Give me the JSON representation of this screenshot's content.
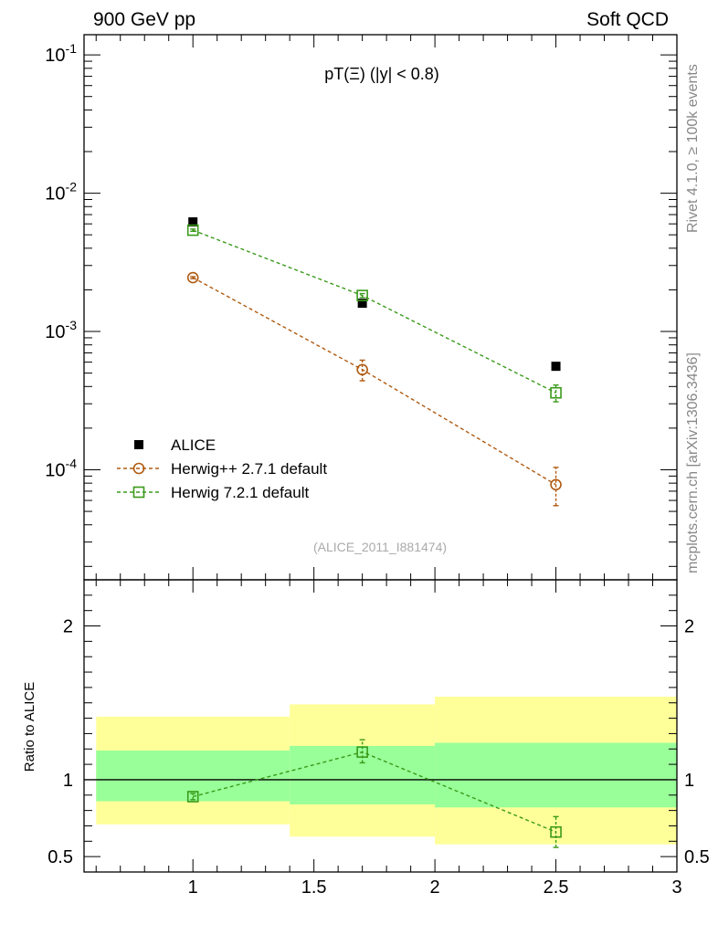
{
  "header": {
    "left": "900 GeV pp",
    "right": "Soft QCD",
    "plot_title": "pT(Ξ) (|y| < 0.8)",
    "side_top": "Rivet 4.1.0, ≥ 100k events",
    "side_bottom": "mcplots.cern.ch [arXiv:1306.3436]",
    "analysis_id": "(ALICE_2011_I881474)"
  },
  "colors": {
    "data": "#000000",
    "herwigpp": "#b05a10",
    "herwig7": "#3a9a1a",
    "band_inner": "#99ff99",
    "band_outer": "#ffff99"
  },
  "chart_data": [
    {
      "type": "scatter",
      "panel": "main",
      "title": "pT(Ξ) (|y| < 0.8)",
      "xlim": [
        0.55,
        3.0
      ],
      "ylim": [
        1.6e-05,
        0.14
      ],
      "yscale": "log",
      "y_ticks": [
        {
          "value": 0.1,
          "label": "10^-1"
        },
        {
          "value": 0.01,
          "label": "10^-2"
        },
        {
          "value": 0.001,
          "label": "10^-3"
        },
        {
          "value": 0.0001,
          "label": "10^-4"
        }
      ],
      "legend_position": "bottom-left",
      "series": [
        {
          "name": "ALICE",
          "marker": "filled-square",
          "line": "none",
          "x": [
            1.0,
            1.7,
            2.5
          ],
          "y": [
            0.0062,
            0.0016,
            0.00056
          ]
        },
        {
          "name": "Herwig++ 2.7.1 default",
          "marker": "open-circle",
          "line": "dashed",
          "x": [
            1.0,
            1.7,
            2.5
          ],
          "y": [
            0.00245,
            0.00053,
            7.8e-05
          ],
          "yerr_low": [
            0.00241,
            0.00044,
            5.5e-05
          ],
          "yerr_high": [
            0.00249,
            0.00062,
            0.000104
          ]
        },
        {
          "name": "Herwig 7.2.1 default",
          "marker": "open-square",
          "line": "dashed",
          "x": [
            1.0,
            1.7,
            2.5
          ],
          "y": [
            0.0054,
            0.00182,
            0.00036
          ],
          "yerr_low": [
            0.0053,
            0.00176,
            0.00031
          ],
          "yerr_high": [
            0.0055,
            0.00188,
            0.00041
          ]
        }
      ]
    },
    {
      "type": "line",
      "panel": "ratio",
      "ylabel": "Ratio to ALICE",
      "xlim": [
        0.55,
        3.0
      ],
      "ylim": [
        0.4,
        2.3
      ],
      "x_ticks": [
        1,
        1.5,
        2,
        2.5,
        3
      ],
      "x_tick_labels": [
        "1",
        "1.5",
        "2",
        "2.5",
        "3"
      ],
      "y_ticks": [
        0.5,
        1,
        2
      ],
      "y_tick_labels": [
        "0.5",
        "1",
        "2"
      ],
      "reference_line": 1,
      "bands": {
        "bins": [
          [
            0.6,
            1.4
          ],
          [
            1.4,
            2.0
          ],
          [
            2.0,
            3.0
          ]
        ],
        "inner": [
          [
            0.86,
            1.19
          ],
          [
            0.84,
            1.22
          ],
          [
            0.82,
            1.24
          ]
        ],
        "outer": [
          [
            0.71,
            1.41
          ],
          [
            0.63,
            1.49
          ],
          [
            0.58,
            1.54
          ]
        ]
      },
      "series": [
        {
          "name": "Herwig 7.2.1 default",
          "marker": "open-square",
          "line": "dashed",
          "x": [
            1.0,
            1.7,
            2.5
          ],
          "y": [
            0.89,
            1.18,
            0.66
          ],
          "yerr_low": [
            0.87,
            1.11,
            0.56
          ],
          "yerr_high": [
            0.91,
            1.26,
            0.76
          ]
        }
      ]
    }
  ]
}
